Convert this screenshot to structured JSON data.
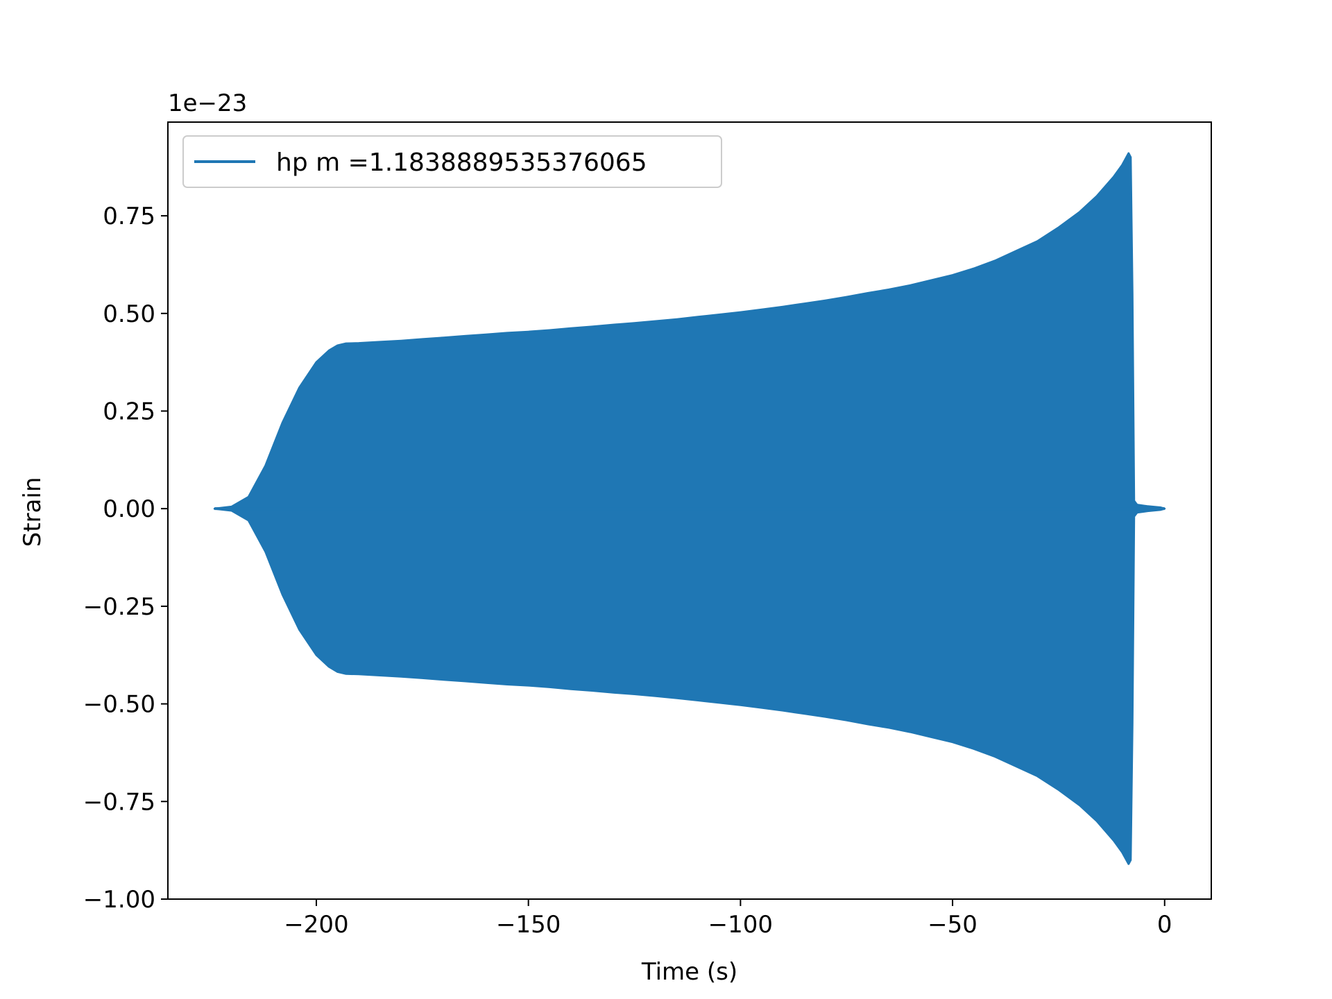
{
  "chart_data": {
    "type": "area",
    "title": "",
    "xlabel": "Time (s)",
    "ylabel": "Strain",
    "offset_text": "1e−23",
    "xlim": [
      -235,
      11
    ],
    "ylim": [
      -1.0,
      0.99
    ],
    "x_ticks": [
      -200,
      -150,
      -100,
      -50,
      0
    ],
    "x_tick_labels": [
      "−200",
      "−150",
      "−100",
      "−50",
      "0"
    ],
    "y_ticks": [
      -1.0,
      -0.75,
      -0.5,
      -0.25,
      0.0,
      0.25,
      0.5,
      0.75
    ],
    "y_tick_labels": [
      "−1.00",
      "−0.75",
      "−0.50",
      "−0.25",
      "0.00",
      "0.25",
      "0.50",
      "0.75"
    ],
    "grid": false,
    "legend_position": "upper-left",
    "series": [
      {
        "name": "hp m =1.1838889535376065",
        "color": "#1f77b4",
        "envelope_upper": {
          "x": [
            -224,
            -220,
            -216,
            -212,
            -208,
            -204,
            -200,
            -197,
            -195,
            -193,
            -190,
            -185,
            -180,
            -175,
            -170,
            -165,
            -160,
            -155,
            -150,
            -145,
            -140,
            -135,
            -130,
            -125,
            -120,
            -115,
            -110,
            -105,
            -100,
            -95,
            -90,
            -85,
            -80,
            -75,
            -70,
            -65,
            -60,
            -55,
            -50,
            -45,
            -40,
            -35,
            -30,
            -25,
            -20,
            -16,
            -12,
            -10,
            -8.5,
            -8,
            -7.6,
            -7.2,
            -6.5,
            -4,
            -1,
            0
          ],
          "y": [
            0.0,
            0.005,
            0.03,
            0.11,
            0.22,
            0.31,
            0.375,
            0.405,
            0.418,
            0.423,
            0.424,
            0.427,
            0.43,
            0.434,
            0.438,
            0.442,
            0.446,
            0.45,
            0.453,
            0.457,
            0.462,
            0.466,
            0.471,
            0.475,
            0.48,
            0.485,
            0.491,
            0.497,
            0.503,
            0.51,
            0.517,
            0.525,
            0.533,
            0.542,
            0.552,
            0.561,
            0.572,
            0.585,
            0.598,
            0.615,
            0.635,
            0.66,
            0.685,
            0.72,
            0.76,
            0.8,
            0.85,
            0.88,
            0.91,
            0.9,
            0.55,
            0.02,
            0.01,
            0.006,
            0.003,
            0.0
          ]
        },
        "envelope_lower": {
          "x": [
            -224,
            -220,
            -216,
            -212,
            -208,
            -204,
            -200,
            -197,
            -195,
            -193,
            -190,
            -185,
            -180,
            -175,
            -170,
            -165,
            -160,
            -155,
            -150,
            -145,
            -140,
            -135,
            -130,
            -125,
            -120,
            -115,
            -110,
            -105,
            -100,
            -95,
            -90,
            -85,
            -80,
            -75,
            -70,
            -65,
            -60,
            -55,
            -50,
            -45,
            -40,
            -35,
            -30,
            -25,
            -20,
            -16,
            -12,
            -10,
            -8.5,
            -8,
            -7.6,
            -7.2,
            -6.5,
            -4,
            -1,
            0
          ],
          "y": [
            0.0,
            -0.005,
            -0.03,
            -0.11,
            -0.22,
            -0.31,
            -0.375,
            -0.405,
            -0.418,
            -0.423,
            -0.424,
            -0.427,
            -0.43,
            -0.434,
            -0.438,
            -0.442,
            -0.446,
            -0.45,
            -0.453,
            -0.457,
            -0.462,
            -0.466,
            -0.471,
            -0.475,
            -0.48,
            -0.485,
            -0.491,
            -0.497,
            -0.503,
            -0.51,
            -0.517,
            -0.525,
            -0.533,
            -0.542,
            -0.552,
            -0.561,
            -0.572,
            -0.585,
            -0.598,
            -0.615,
            -0.635,
            -0.66,
            -0.685,
            -0.72,
            -0.76,
            -0.8,
            -0.85,
            -0.88,
            -0.91,
            -0.9,
            -0.55,
            -0.02,
            -0.01,
            -0.006,
            -0.003,
            0.0
          ]
        }
      }
    ]
  }
}
